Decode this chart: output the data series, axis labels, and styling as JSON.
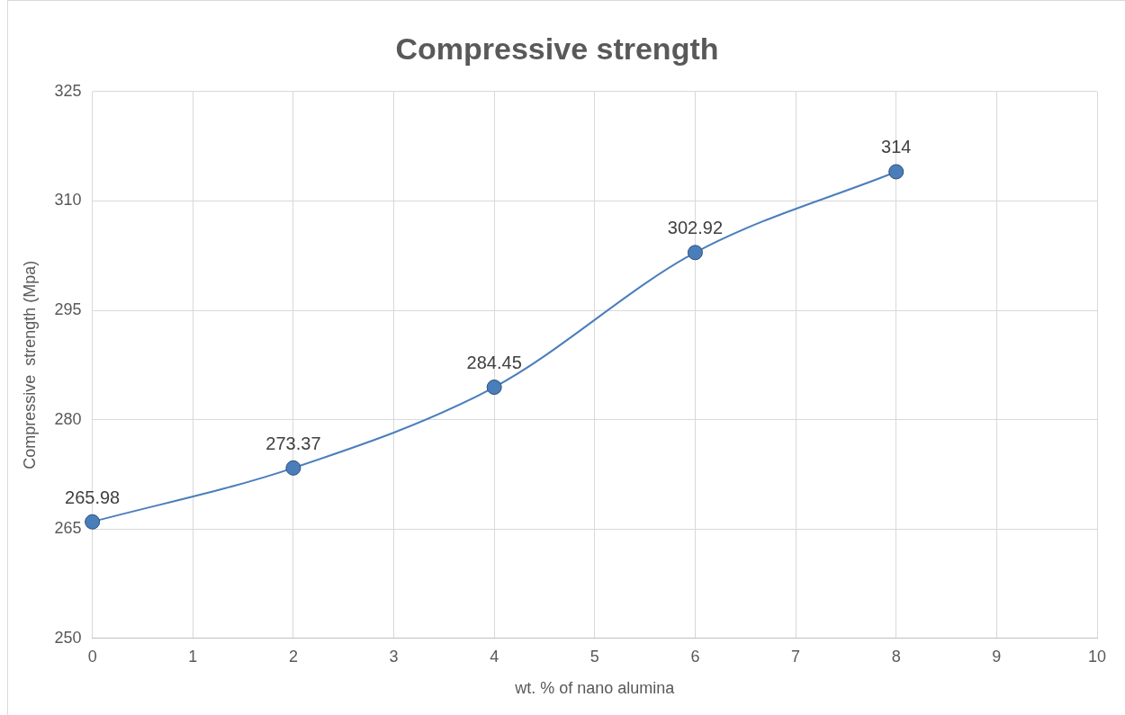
{
  "chart_data": {
    "type": "line",
    "title": "Compressive strength",
    "xlabel": "wt. % of nano alumina",
    "ylabel": "Compressive  strength (Mpa)",
    "x": [
      0,
      2,
      4,
      6,
      8
    ],
    "series": [
      {
        "color": "#4a7ebb",
        "values": [
          265.98,
          273.37,
          284.45,
          302.92,
          314
        ]
      }
    ],
    "xlim": [
      0,
      10
    ],
    "xticks": [
      0,
      1,
      2,
      3,
      4,
      5,
      6,
      7,
      8,
      9,
      10
    ],
    "ylim": [
      250,
      325
    ],
    "yticks": [
      250,
      265,
      280,
      295,
      310,
      325
    ],
    "grid": true,
    "legend": false,
    "marker": "circle",
    "line_style": "solid",
    "data_labels": true
  }
}
